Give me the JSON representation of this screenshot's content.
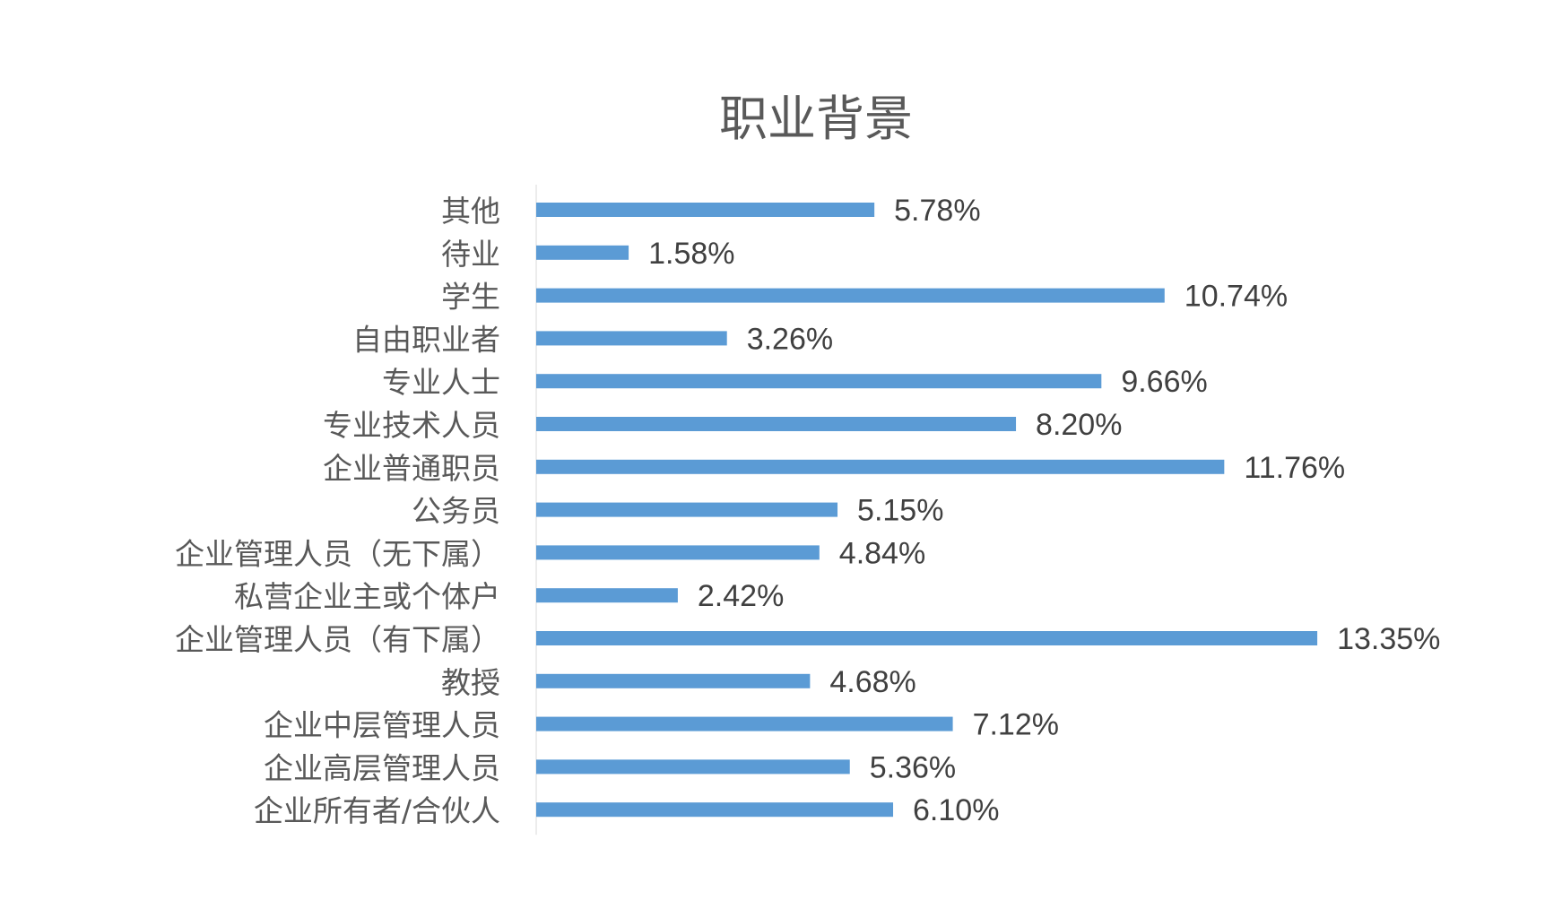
{
  "chart_data": {
    "type": "bar",
    "orientation": "horizontal",
    "title": "职业背景",
    "categories": [
      "其他",
      "待业",
      "学生",
      "自由职业者",
      "专业人士",
      "专业技术人员",
      "企业普通职员",
      "公务员",
      "企业管理人员（无下属）",
      "私营企业主或个体户",
      "企业管理人员（有下属）",
      "教授",
      "企业中层管理人员",
      "企业高层管理人员",
      "企业所有者/合伙人"
    ],
    "values": [
      5.78,
      1.58,
      10.74,
      3.26,
      9.66,
      8.2,
      11.76,
      5.15,
      4.84,
      2.42,
      13.35,
      4.68,
      7.12,
      5.36,
      6.1
    ],
    "labels": [
      "5.78%",
      "1.58%",
      "10.74%",
      "3.26%",
      "9.66%",
      "8.20%",
      "11.76%",
      "5.15%",
      "4.84%",
      "2.42%",
      "13.35%",
      "4.68%",
      "7.12%",
      "5.36%",
      "6.10%"
    ],
    "xlabel": "",
    "ylabel": "",
    "grid": false,
    "color": "#5B9BD5"
  }
}
